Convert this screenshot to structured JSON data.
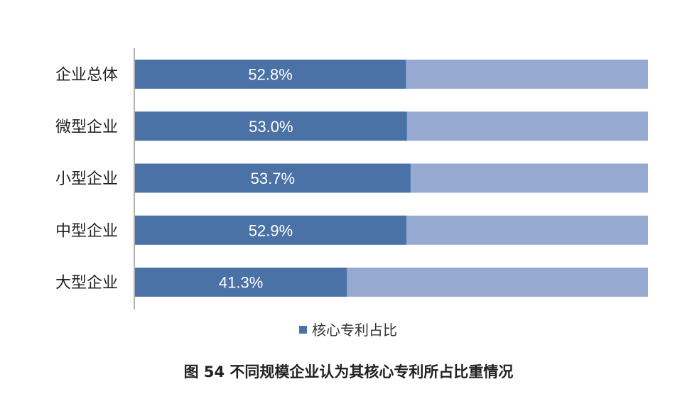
{
  "chart_data": {
    "type": "bar",
    "orientation": "horizontal",
    "stacked": true,
    "categories": [
      "企业总体",
      "微型企业",
      "小型企业",
      "中型企业",
      "大型企业"
    ],
    "series": [
      {
        "name": "核心专利占比",
        "values": [
          52.8,
          53.0,
          53.7,
          52.9,
          41.3
        ],
        "labels": [
          "52.8%",
          "53.0%",
          "53.7%",
          "52.9%",
          "41.3%"
        ],
        "color": "#4a72a6"
      }
    ],
    "remainder_color": "#95a9d1",
    "xlim": [
      0,
      100
    ],
    "legend": "bottom",
    "grid": false
  },
  "caption": "图 54  不同规模企业认为其核心专利所占比重情况",
  "colors": {
    "primary": "#4a72a6",
    "remainder": "#95a9d1",
    "axis": "#999999"
  }
}
